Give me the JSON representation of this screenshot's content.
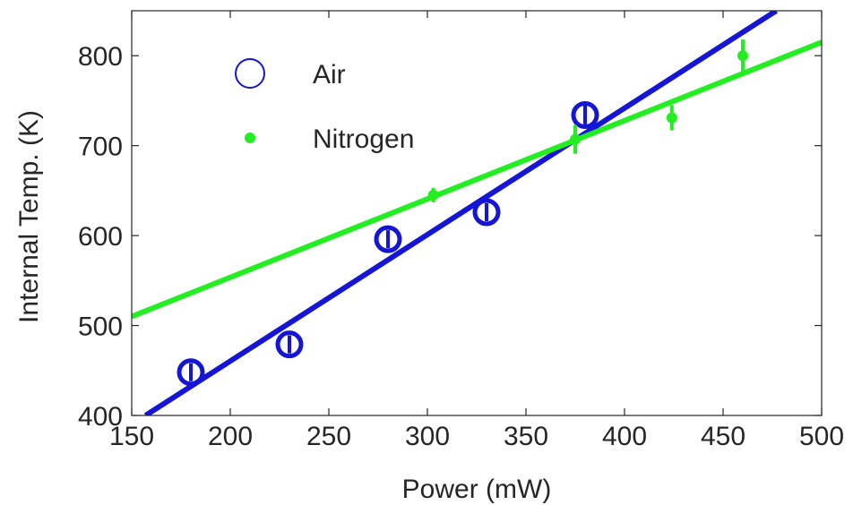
{
  "chart_data": {
    "type": "scatter",
    "xlabel": "Power (mW)",
    "ylabel": "Internal Temp. (K)",
    "xlim": [
      150,
      500
    ],
    "ylim": [
      400,
      850
    ],
    "xticks": [
      150,
      200,
      250,
      300,
      350,
      400,
      450,
      500
    ],
    "yticks": [
      400,
      500,
      600,
      700,
      800
    ],
    "grid": false,
    "legend_position": "top-left",
    "series": [
      {
        "name": "Air",
        "marker": "open-circle",
        "color": "#1515d6",
        "x": [
          180,
          230,
          280,
          330,
          380
        ],
        "y": [
          448,
          479,
          596,
          626,
          734
        ],
        "err": [
          10,
          10,
          10,
          10,
          12
        ],
        "fit": {
          "x": [
            157,
            477
          ],
          "y": [
            400,
            850
          ]
        }
      },
      {
        "name": "Nitrogen",
        "marker": "dot",
        "color": "#22ee22",
        "x": [
          303,
          375,
          424,
          460
        ],
        "y": [
          645,
          707,
          731,
          800
        ],
        "err": [
          8,
          16,
          14,
          18
        ],
        "fit": {
          "x": [
            150,
            500
          ],
          "y": [
            510,
            815
          ]
        }
      }
    ]
  }
}
